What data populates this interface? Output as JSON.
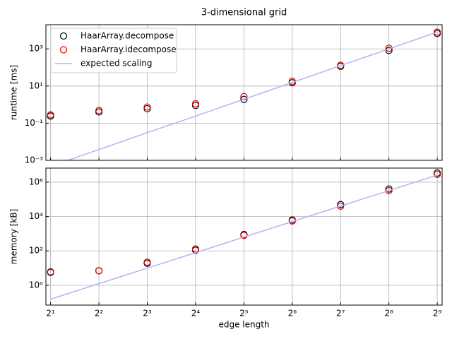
{
  "chart_data": [
    {
      "type": "scatter",
      "title": "3-dimensional grid",
      "ylabel": "runtime [ms]",
      "xscale": "log",
      "yscale": "log",
      "grid": true,
      "legend": "upper left",
      "x": [
        2,
        4,
        8,
        16,
        32,
        64,
        128,
        256,
        512
      ],
      "xlim": [
        1.87,
        549
      ],
      "xticks": [
        2,
        4,
        8,
        16,
        32,
        64,
        128,
        256,
        512
      ],
      "ylim": [
        0.001,
        20000
      ],
      "yticks": [
        {
          "value": 0.001,
          "label": "10⁻³"
        },
        {
          "value": 0.1,
          "label": "10⁻¹"
        },
        {
          "value": 10,
          "label": "10¹"
        },
        {
          "value": 1000,
          "label": "10³"
        }
      ],
      "series": [
        {
          "name": "HaarArray.decompose",
          "color": "#000000",
          "mode": "markers",
          "values": [
            0.24,
            0.4,
            0.6,
            0.9,
            1.9,
            15,
            115,
            830,
            6800
          ]
        },
        {
          "name": "HaarArray.idecompose",
          "color": "#e00000",
          "mode": "markers",
          "values": [
            0.28,
            0.48,
            0.74,
            1.1,
            2.7,
            18,
            130,
            1090,
            8000
          ]
        },
        {
          "name": "expected scaling",
          "color": "#b3b3f5",
          "mode": "line",
          "values": [
            0.00048,
            0.0038,
            0.031,
            0.24,
            1.95,
            15.6,
            125,
            1000,
            8000
          ]
        }
      ]
    },
    {
      "type": "scatter",
      "ylabel": "memory [kB]",
      "xlabel": "edge length",
      "xscale": "log",
      "yscale": "log",
      "grid": true,
      "x": [
        2,
        4,
        8,
        16,
        32,
        64,
        128,
        256,
        512
      ],
      "xlim": [
        1.87,
        549
      ],
      "xticks": [
        {
          "value": 2,
          "label": "2¹"
        },
        {
          "value": 4,
          "label": "2²"
        },
        {
          "value": 8,
          "label": "2³"
        },
        {
          "value": 16,
          "label": "2⁴"
        },
        {
          "value": 32,
          "label": "2⁵"
        },
        {
          "value": 64,
          "label": "2⁶"
        },
        {
          "value": 128,
          "label": "2⁷"
        },
        {
          "value": 256,
          "label": "2⁸"
        },
        {
          "value": 512,
          "label": "2⁹"
        }
      ],
      "ylim": [
        0.07,
        6600000
      ],
      "yticks": [
        {
          "value": 1,
          "label": "10⁰"
        },
        {
          "value": 100,
          "label": "10²"
        },
        {
          "value": 10000,
          "label": "10⁴"
        },
        {
          "value": 1000000,
          "label": "10⁶"
        }
      ],
      "series": [
        {
          "name": "HaarArray.decompose",
          "color": "#000000",
          "mode": "markers",
          "values": [
            6,
            7,
            19,
            110,
            900,
            6300,
            50000,
            400000,
            3400000
          ]
        },
        {
          "name": "HaarArray.idecompose",
          "color": "#e00000",
          "mode": "markers",
          "values": [
            5.5,
            7,
            22,
            130,
            800,
            5500,
            40000,
            320000,
            2800000
          ]
        },
        {
          "name": "expected scaling",
          "color": "#b3b3f5",
          "mode": "line",
          "values": [
            0.155,
            1.24,
            9.9,
            79,
            636,
            5090,
            40700,
            326000,
            2600000
          ]
        }
      ]
    }
  ]
}
